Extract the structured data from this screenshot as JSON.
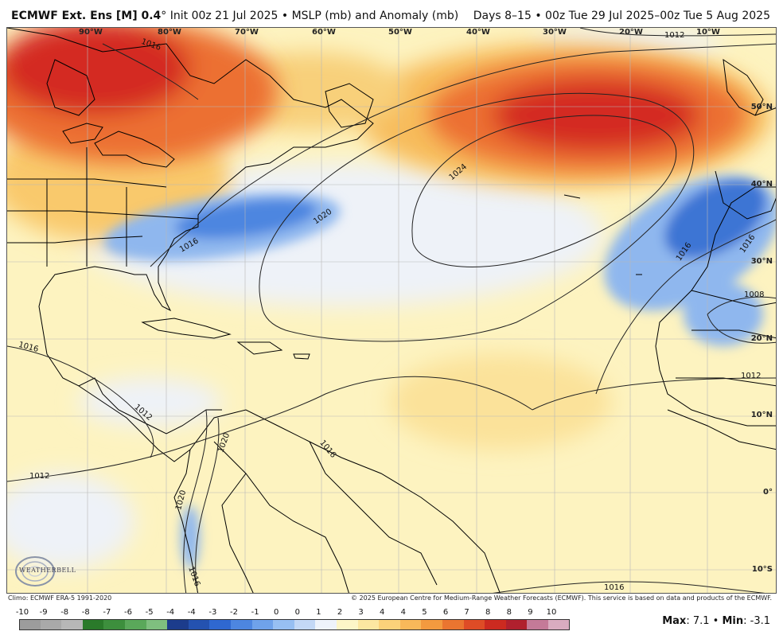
{
  "header": {
    "model": "ECMWF Ext. Ens [M] 0.4",
    "deg": "°",
    "init": "Init 00z 21 Jul 2025",
    "bullet": "•",
    "field": "MSLP (mb) and Anomaly (mb)",
    "period": "Days 8–15 • 00z Tue 29 Jul 2025–00z Tue 5 Aug 2025"
  },
  "map": {
    "lon_labels": [
      "90°W",
      "80°W",
      "70°W",
      "60°W",
      "50°W",
      "40°W",
      "30°W",
      "20°W",
      "10°W"
    ],
    "lat_labels": [
      "50°N",
      "40°N",
      "30°N",
      "20°N",
      "10°N",
      "0°",
      "10°S"
    ],
    "contour_labels": [
      "1016",
      "1012",
      "1024",
      "1020",
      "1016",
      "1016",
      "1016",
      "1008",
      "1012",
      "1016",
      "1012",
      "1016",
      "1020",
      "1012",
      "1020",
      "1016",
      "1012",
      "1016"
    ]
  },
  "credits": {
    "climo": "Climo: ECMWF ERA-5 1991-2020",
    "copyright": "© 2025 European Centre for Medium-Range Weather Forecasts (ECMWF). This service is based on data and products of the ECMWF."
  },
  "logo": {
    "text": "WEATHERBELL"
  },
  "colorbar": {
    "ticks": [
      "-10",
      "-9",
      "-8",
      "-8",
      "-7",
      "-6",
      "-5",
      "-4",
      "-4",
      "-3",
      "-2",
      "-1",
      "0",
      "0",
      "1",
      "2",
      "3",
      "4",
      "4",
      "5",
      "6",
      "7",
      "8",
      "8",
      "9",
      "10"
    ],
    "colors": [
      "#9c9c9c",
      "#a9a9a9",
      "#b7b7b7",
      "#2a7a2a",
      "#3d8f3d",
      "#5aa85a",
      "#7fbf7f",
      "#1c3c8c",
      "#2452b0",
      "#2f68d0",
      "#4d86e0",
      "#6fa2ea",
      "#97bff2",
      "#c3d8f6",
      "#eef3fb",
      "#fdf6c8",
      "#fce7a1",
      "#fbd27a",
      "#f8b85a",
      "#f39a3f",
      "#ea7530",
      "#de4c26",
      "#cc2a20",
      "#b0202e",
      "#c47a98",
      "#d9acc0"
    ]
  },
  "stats": {
    "max_label": "Max",
    "max": ": 7.1",
    "sep": " • ",
    "min_label": "Min",
    "min": ": -3.1"
  },
  "colors": {
    "warm_anomaly": "#de2020",
    "cool_anomaly": "#3a7fd8",
    "land_line": "#000000",
    "contour": "#333333"
  }
}
